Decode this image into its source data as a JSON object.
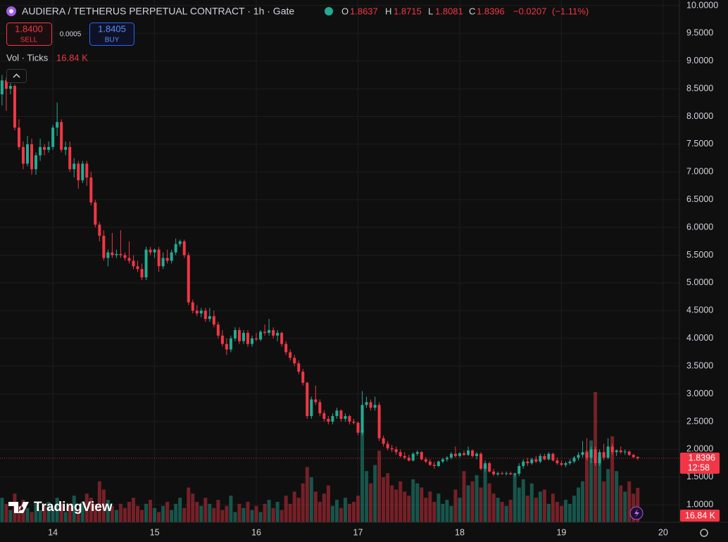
{
  "chart_data": {
    "type": "candlestick",
    "title": "AUDIERA / TETHERUS PERPETUAL CONTRACT · 1h · Gate",
    "ohlc_labels": [
      "O",
      "H",
      "L",
      "C"
    ],
    "change": "−0.0207",
    "change_pct": "(−1.11%)",
    "sell": {
      "price": "1.8400",
      "label": "SELL"
    },
    "spread": "0.0005",
    "buy": {
      "price": "1.8405",
      "label": "BUY"
    },
    "volume_title": "Vol · Ticks",
    "last_volume_label": "16.84 K",
    "countdown": "12:58",
    "brand": "TradingView",
    "up_color": "#22ab94",
    "down_color": "#f23645",
    "grid": true,
    "xlim": [
      13.48,
      20.16
    ],
    "xticks": [
      14,
      15,
      16,
      17,
      18,
      19,
      20
    ],
    "ylim": [
      0.685,
      10.1
    ],
    "yticks": [
      {
        "value": 1,
        "label": "1.0000"
      },
      {
        "value": 1.5,
        "label": "1.5000"
      },
      {
        "value": 2,
        "label": "2.0000"
      },
      {
        "value": 2.5,
        "label": "2.5000"
      },
      {
        "value": 3,
        "label": "3.0000"
      },
      {
        "value": 3.5,
        "label": "3.5000"
      },
      {
        "value": 4,
        "label": "4.0000"
      },
      {
        "value": 4.5,
        "label": "4.5000"
      },
      {
        "value": 5,
        "label": "5.0000"
      },
      {
        "value": 5.5,
        "label": "5.5000"
      },
      {
        "value": 6,
        "label": "6.0000"
      },
      {
        "value": 6.5,
        "label": "6.5000"
      },
      {
        "value": 7,
        "label": "7.0000"
      },
      {
        "value": 7.5,
        "label": "7.5000"
      },
      {
        "value": 8,
        "label": "8.0000"
      },
      {
        "value": 8.5,
        "label": "8.5000"
      },
      {
        "value": 9,
        "label": "9.0000"
      },
      {
        "value": 9.5,
        "label": "9.5000"
      },
      {
        "value": 10,
        "label": "10.0000"
      }
    ],
    "x": [
      13.5,
      13.5417,
      13.5833,
      13.625,
      13.6667,
      13.7083,
      13.75,
      13.7917,
      13.8333,
      13.875,
      13.9167,
      13.9583,
      14,
      14.0417,
      14.0833,
      14.125,
      14.1667,
      14.2083,
      14.25,
      14.2917,
      14.3333,
      14.375,
      14.4167,
      14.4583,
      14.5,
      14.5417,
      14.5833,
      14.625,
      14.6667,
      14.7083,
      14.75,
      14.7917,
      14.8333,
      14.875,
      14.9167,
      14.9583,
      15,
      15.0417,
      15.0833,
      15.125,
      15.1667,
      15.2083,
      15.25,
      15.2917,
      15.3333,
      15.375,
      15.4167,
      15.4583,
      15.5,
      15.5417,
      15.5833,
      15.625,
      15.6667,
      15.7083,
      15.75,
      15.7917,
      15.8333,
      15.875,
      15.9167,
      15.9583,
      16,
      16.0417,
      16.0833,
      16.125,
      16.1667,
      16.2083,
      16.25,
      16.2917,
      16.3333,
      16.375,
      16.4167,
      16.4583,
      16.5,
      16.5417,
      16.5833,
      16.625,
      16.6667,
      16.7083,
      16.75,
      16.7917,
      16.8333,
      16.875,
      16.9167,
      16.9583,
      17,
      17.0417,
      17.0833,
      17.125,
      17.1667,
      17.2083,
      17.25,
      17.2917,
      17.3333,
      17.375,
      17.4167,
      17.4583,
      17.5,
      17.5417,
      17.5833,
      17.625,
      17.6667,
      17.7083,
      17.75,
      17.7917,
      17.8333,
      17.875,
      17.9167,
      17.9583,
      18,
      18.0417,
      18.0833,
      18.125,
      18.1667,
      18.2083,
      18.25,
      18.2917,
      18.3333,
      18.375,
      18.4167,
      18.4583,
      18.5,
      18.5417,
      18.5833,
      18.625,
      18.6667,
      18.7083,
      18.75,
      18.7917,
      18.8333,
      18.875,
      18.9167,
      18.9583,
      19,
      19.0417,
      19.0833,
      19.125,
      19.1667,
      19.2083,
      19.25,
      19.2917,
      19.3333,
      19.375,
      19.4167,
      19.4583,
      19.5,
      19.5417,
      19.5833,
      19.625,
      19.6667,
      19.7083,
      19.75
    ],
    "ohlc": [
      [
        8.4,
        8.75,
        8.2,
        8.65
      ],
      [
        8.65,
        8.7,
        8.1,
        8.5
      ],
      [
        8.5,
        8.6,
        8.4,
        8.55
      ],
      [
        8.55,
        8.58,
        7.75,
        7.8
      ],
      [
        7.8,
        7.95,
        7.4,
        7.45
      ],
      [
        7.45,
        7.55,
        7.05,
        7.15
      ],
      [
        7.15,
        7.65,
        7.1,
        7.5
      ],
      [
        7.5,
        7.6,
        6.95,
        7.05
      ],
      [
        7.05,
        7.35,
        6.95,
        7.3
      ],
      [
        7.3,
        7.6,
        7.2,
        7.45
      ],
      [
        7.45,
        7.5,
        7.3,
        7.4
      ],
      [
        7.4,
        7.55,
        7.35,
        7.45
      ],
      [
        7.45,
        7.85,
        7.4,
        7.8
      ],
      [
        7.8,
        8.25,
        7.65,
        7.9
      ],
      [
        7.9,
        7.95,
        7.35,
        7.4
      ],
      [
        7.4,
        7.55,
        7.3,
        7.45
      ],
      [
        7.45,
        7.55,
        7.0,
        7.05
      ],
      [
        7.05,
        7.25,
        6.9,
        7.15
      ],
      [
        7.15,
        7.2,
        6.7,
        6.85
      ],
      [
        6.85,
        7.2,
        6.8,
        7.15
      ],
      [
        7.15,
        7.2,
        6.75,
        6.9
      ],
      [
        6.9,
        7.0,
        6.4,
        6.45
      ],
      [
        6.45,
        6.5,
        6.0,
        6.05
      ],
      [
        6.05,
        6.1,
        5.75,
        5.85
      ],
      [
        5.85,
        5.95,
        5.4,
        5.45
      ],
      [
        5.45,
        5.6,
        5.3,
        5.55
      ],
      [
        5.55,
        5.9,
        5.45,
        5.5
      ],
      [
        5.5,
        5.6,
        5.45,
        5.52
      ],
      [
        5.52,
        5.95,
        5.45,
        5.5
      ],
      [
        5.5,
        5.55,
        5.4,
        5.45
      ],
      [
        5.45,
        5.75,
        5.35,
        5.4
      ],
      [
        5.4,
        5.5,
        5.25,
        5.3
      ],
      [
        5.3,
        5.4,
        5.2,
        5.25
      ],
      [
        5.25,
        5.35,
        5.05,
        5.1
      ],
      [
        5.1,
        5.65,
        5.05,
        5.6
      ],
      [
        5.6,
        5.65,
        5.5,
        5.55
      ],
      [
        5.55,
        5.62,
        5.45,
        5.6
      ],
      [
        5.6,
        5.65,
        5.2,
        5.3
      ],
      [
        5.3,
        5.55,
        5.25,
        5.45
      ],
      [
        5.45,
        5.6,
        5.35,
        5.4
      ],
      [
        5.4,
        5.6,
        5.35,
        5.55
      ],
      [
        5.55,
        5.8,
        5.5,
        5.7
      ],
      [
        5.7,
        5.78,
        5.65,
        5.75
      ],
      [
        5.75,
        5.78,
        5.45,
        5.5
      ],
      [
        5.5,
        5.55,
        4.6,
        4.65
      ],
      [
        4.65,
        4.7,
        4.45,
        4.5
      ],
      [
        4.5,
        4.6,
        4.4,
        4.45
      ],
      [
        4.45,
        4.55,
        4.38,
        4.5
      ],
      [
        4.5,
        4.55,
        4.3,
        4.35
      ],
      [
        4.35,
        4.55,
        4.3,
        4.4
      ],
      [
        4.4,
        4.5,
        4.2,
        4.25
      ],
      [
        4.25,
        4.3,
        4.0,
        4.05
      ],
      [
        4.05,
        4.15,
        3.85,
        3.9
      ],
      [
        3.9,
        4.0,
        3.7,
        3.8
      ],
      [
        3.8,
        4.05,
        3.75,
        4.0
      ],
      [
        4.0,
        4.2,
        3.95,
        4.15
      ],
      [
        4.15,
        4.2,
        3.9,
        3.95
      ],
      [
        3.95,
        4.15,
        3.9,
        4.1
      ],
      [
        4.1,
        4.15,
        3.85,
        3.9
      ],
      [
        3.9,
        4.05,
        3.85,
        4.0
      ],
      [
        4.0,
        4.1,
        3.95,
        3.98
      ],
      [
        3.98,
        4.15,
        3.95,
        4.12
      ],
      [
        4.12,
        4.25,
        4.05,
        4.1
      ],
      [
        4.1,
        4.35,
        4.05,
        4.15
      ],
      [
        4.15,
        4.2,
        4.0,
        4.05
      ],
      [
        4.05,
        4.15,
        3.95,
        4.1
      ],
      [
        4.1,
        4.12,
        3.85,
        3.9
      ],
      [
        3.9,
        3.95,
        3.7,
        3.75
      ],
      [
        3.75,
        3.8,
        3.6,
        3.65
      ],
      [
        3.65,
        3.7,
        3.5,
        3.55
      ],
      [
        3.55,
        3.6,
        3.35,
        3.4
      ],
      [
        3.4,
        3.45,
        3.15,
        3.2
      ],
      [
        3.2,
        3.22,
        2.55,
        2.6
      ],
      [
        2.6,
        2.95,
        2.55,
        2.9
      ],
      [
        2.9,
        3.15,
        2.8,
        2.85
      ],
      [
        2.85,
        2.9,
        2.6,
        2.65
      ],
      [
        2.65,
        2.7,
        2.5,
        2.55
      ],
      [
        2.55,
        2.6,
        2.45,
        2.5
      ],
      [
        2.5,
        2.65,
        2.45,
        2.6
      ],
      [
        2.6,
        2.75,
        2.55,
        2.7
      ],
      [
        2.7,
        2.72,
        2.5,
        2.55
      ],
      [
        2.55,
        2.65,
        2.5,
        2.6
      ],
      [
        2.6,
        2.62,
        2.45,
        2.5
      ],
      [
        2.5,
        2.55,
        2.45,
        2.48
      ],
      [
        2.48,
        2.5,
        2.25,
        2.3
      ],
      [
        2.3,
        3.05,
        2.25,
        2.8
      ],
      [
        2.8,
        2.95,
        2.75,
        2.85
      ],
      [
        2.85,
        2.9,
        2.7,
        2.75
      ],
      [
        2.75,
        2.95,
        2.7,
        2.8
      ],
      [
        2.8,
        2.85,
        2.15,
        2.2
      ],
      [
        2.2,
        2.25,
        2.05,
        2.1
      ],
      [
        2.1,
        2.15,
        1.98,
        2.02
      ],
      [
        2.02,
        2.08,
        1.95,
        2.0
      ],
      [
        2.0,
        2.05,
        1.9,
        1.95
      ],
      [
        1.95,
        2.0,
        1.85,
        1.88
      ],
      [
        1.88,
        1.95,
        1.82,
        1.85
      ],
      [
        1.85,
        1.9,
        1.78,
        1.8
      ],
      [
        1.8,
        1.95,
        1.78,
        1.92
      ],
      [
        1.92,
        1.98,
        1.88,
        1.95
      ],
      [
        1.95,
        1.97,
        1.8,
        1.82
      ],
      [
        1.82,
        1.86,
        1.75,
        1.78
      ],
      [
        1.78,
        1.82,
        1.7,
        1.72
      ],
      [
        1.72,
        1.78,
        1.65,
        1.7
      ],
      [
        1.7,
        1.8,
        1.68,
        1.78
      ],
      [
        1.78,
        1.85,
        1.75,
        1.82
      ],
      [
        1.82,
        1.88,
        1.78,
        1.85
      ],
      [
        1.85,
        1.95,
        1.82,
        1.92
      ],
      [
        1.92,
        2.05,
        1.85,
        1.88
      ],
      [
        1.88,
        1.95,
        1.85,
        1.93
      ],
      [
        1.93,
        1.98,
        1.88,
        1.9
      ],
      [
        1.9,
        2.05,
        1.88,
        1.98
      ],
      [
        1.98,
        2.0,
        1.85,
        1.88
      ],
      [
        1.88,
        1.95,
        1.82,
        1.92
      ],
      [
        1.92,
        1.95,
        1.62,
        1.65
      ],
      [
        1.65,
        1.8,
        1.6,
        1.75
      ],
      [
        1.75,
        1.78,
        1.58,
        1.6
      ],
      [
        1.6,
        1.65,
        1.52,
        1.55
      ],
      [
        1.55,
        1.6,
        1.52,
        1.57
      ],
      [
        1.57,
        1.6,
        1.54,
        1.56
      ],
      [
        1.56,
        1.6,
        1.53,
        1.57
      ],
      [
        1.57,
        1.6,
        1.54,
        1.55
      ],
      [
        1.55,
        1.58,
        1.5,
        1.56
      ],
      [
        1.56,
        1.75,
        1.52,
        1.7
      ],
      [
        1.7,
        1.82,
        1.65,
        1.78
      ],
      [
        1.78,
        1.85,
        1.7,
        1.75
      ],
      [
        1.75,
        1.85,
        1.72,
        1.82
      ],
      [
        1.82,
        1.88,
        1.75,
        1.78
      ],
      [
        1.78,
        1.92,
        1.75,
        1.88
      ],
      [
        1.88,
        1.92,
        1.8,
        1.82
      ],
      [
        1.82,
        1.95,
        1.8,
        1.92
      ],
      [
        1.92,
        1.94,
        1.78,
        1.8
      ],
      [
        1.8,
        1.85,
        1.72,
        1.75
      ],
      [
        1.75,
        1.8,
        1.7,
        1.72
      ],
      [
        1.72,
        1.78,
        1.68,
        1.75
      ],
      [
        1.75,
        1.82,
        1.72,
        1.78
      ],
      [
        1.78,
        1.88,
        1.75,
        1.85
      ],
      [
        1.85,
        1.95,
        1.8,
        1.9
      ],
      [
        1.9,
        2.15,
        1.85,
        1.95
      ],
      [
        1.95,
        2.2,
        1.8,
        1.85
      ],
      [
        1.85,
        2.05,
        1.75,
        2.0
      ],
      [
        2.0,
        2.05,
        1.7,
        1.75
      ],
      [
        1.75,
        2.0,
        1.7,
        1.95
      ],
      [
        1.95,
        2.1,
        1.8,
        1.85
      ],
      [
        1.85,
        2.2,
        1.82,
        2.05
      ],
      [
        2.05,
        2.1,
        1.9,
        1.95
      ],
      [
        1.95,
        2.0,
        1.88,
        1.98
      ],
      [
        1.98,
        2.05,
        1.92,
        1.95
      ],
      [
        1.95,
        2.0,
        1.9,
        1.96
      ],
      [
        1.96,
        1.98,
        1.88,
        1.9
      ],
      [
        1.9,
        1.92,
        1.84,
        1.86
      ],
      [
        1.8637,
        1.8715,
        1.8081,
        1.8396
      ]
    ],
    "volume": [
      12,
      9,
      6,
      14,
      8,
      11,
      7,
      5,
      9,
      6,
      8,
      10,
      7,
      12,
      9,
      5,
      8,
      13,
      6,
      10,
      14,
      12,
      9,
      20,
      16,
      11,
      8,
      6,
      9,
      7,
      10,
      12,
      8,
      6,
      9,
      11,
      7,
      5,
      8,
      10,
      6,
      9,
      12,
      7,
      17,
      14,
      10,
      8,
      12,
      9,
      7,
      11,
      6,
      8,
      13,
      5,
      9,
      7,
      10,
      6,
      8,
      5,
      9,
      11,
      7,
      10,
      6,
      13,
      9,
      15,
      12,
      19,
      27,
      22,
      15,
      10,
      14,
      18,
      8,
      11,
      7,
      12,
      9,
      10,
      13,
      45,
      25,
      19,
      28,
      35,
      22,
      24,
      18,
      16,
      20,
      15,
      13,
      21,
      19,
      17,
      12,
      15,
      10,
      14,
      9,
      11,
      8,
      16,
      12,
      25,
      18,
      20,
      23,
      17,
      28,
      19,
      14,
      12,
      10,
      8,
      11,
      24,
      17,
      21,
      13,
      19,
      12,
      15,
      16,
      9,
      14,
      10,
      8,
      11,
      9,
      13,
      17,
      20,
      35,
      40,
      63.6,
      32,
      20,
      26,
      42,
      25,
      18,
      15,
      20,
      14,
      16.84
    ]
  }
}
